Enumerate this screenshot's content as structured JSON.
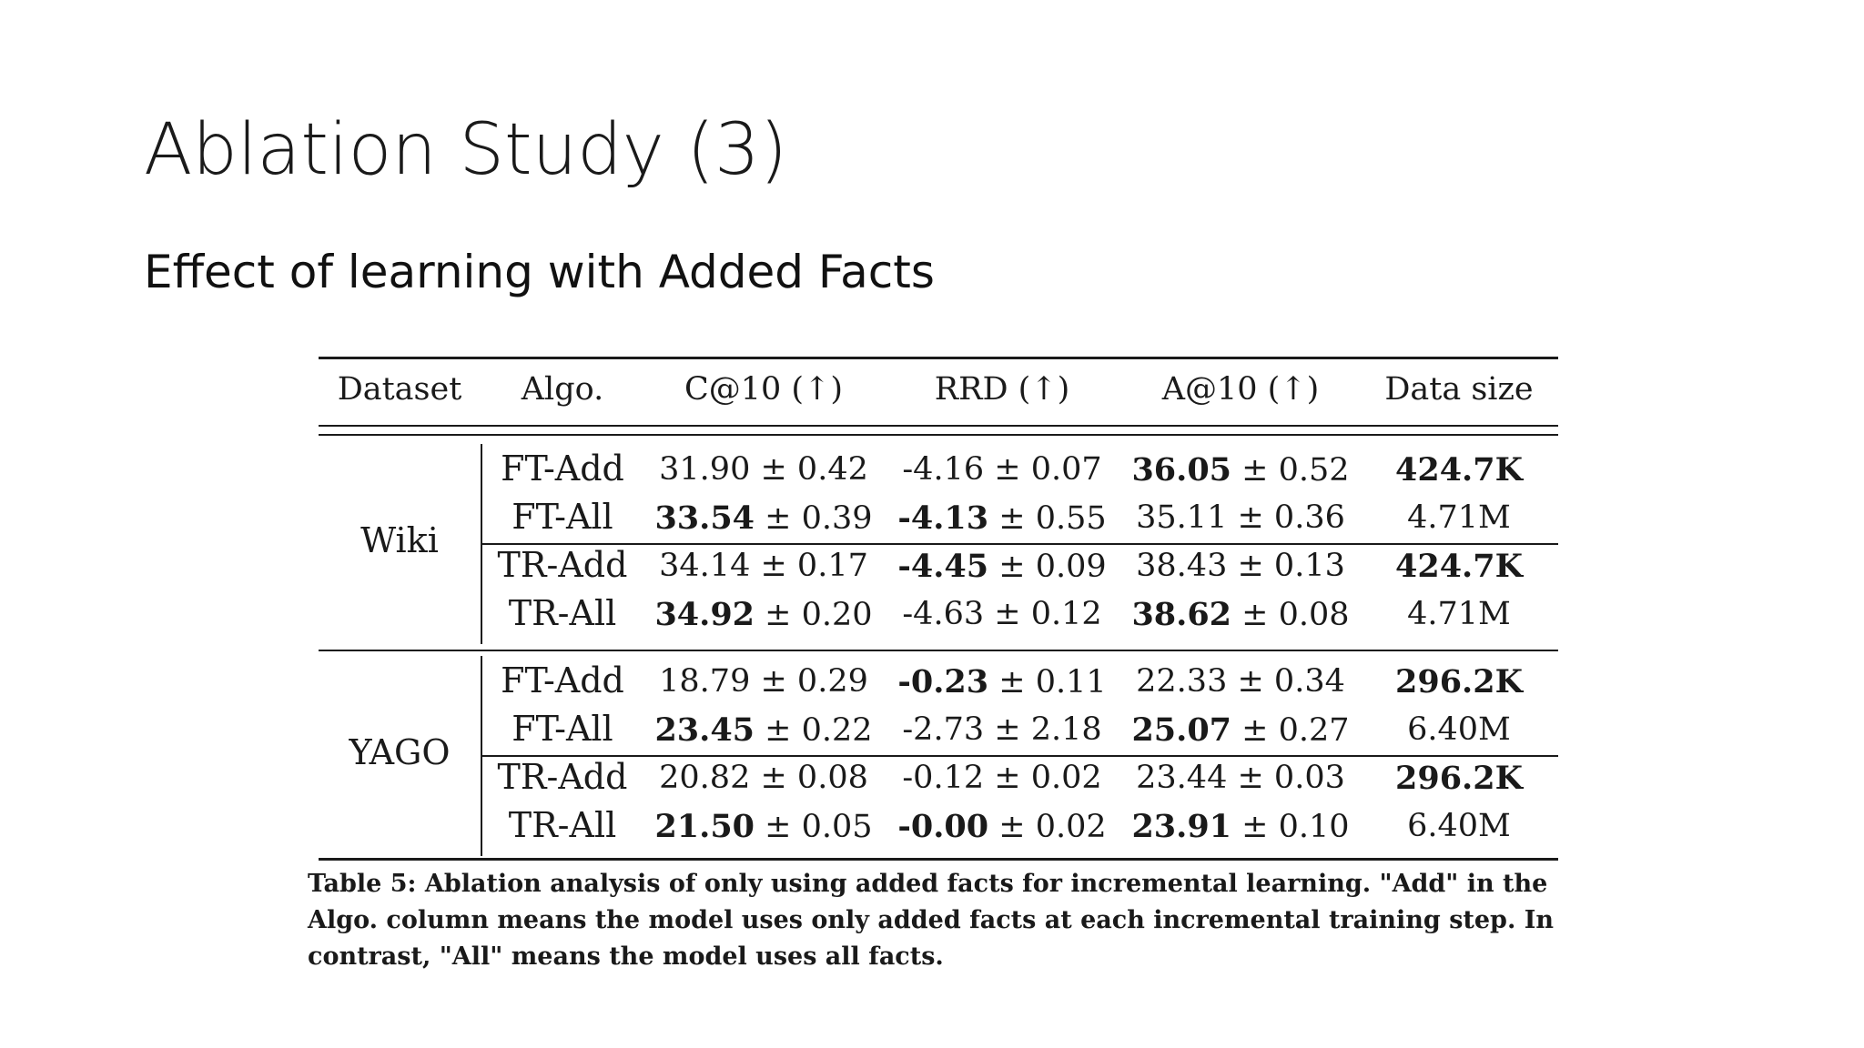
{
  "slide": {
    "title": "Ablation Study (3)",
    "subtitle": "Effect of learning with Added Facts"
  },
  "table": {
    "headers": [
      "Dataset",
      "Algo.",
      "C@10 (↑)",
      "RRD (↑)",
      "A@10 (↑)",
      "Data size"
    ],
    "groups": [
      {
        "dataset": "Wiki",
        "rows": [
          {
            "algo": "FT-Add",
            "c10": {
              "v": "31.90",
              "sd": "± 0.42",
              "bold": false
            },
            "rrd": {
              "v": "-4.16",
              "sd": "± 0.07",
              "bold": false
            },
            "a10": {
              "v": "36.05",
              "sd": "± 0.52",
              "bold": true
            },
            "size": {
              "v": "424.7K",
              "bold": true
            }
          },
          {
            "algo": "FT-All",
            "c10": {
              "v": "33.54",
              "sd": "± 0.39",
              "bold": true
            },
            "rrd": {
              "v": "-4.13",
              "sd": "± 0.55",
              "bold": true
            },
            "a10": {
              "v": "35.11",
              "sd": "± 0.36",
              "bold": false
            },
            "size": {
              "v": "4.71M",
              "bold": false
            }
          },
          {
            "algo": "TR-Add",
            "c10": {
              "v": "34.14",
              "sd": "± 0.17",
              "bold": false
            },
            "rrd": {
              "v": "-4.45",
              "sd": "± 0.09",
              "bold": true
            },
            "a10": {
              "v": "38.43",
              "sd": "± 0.13",
              "bold": false
            },
            "size": {
              "v": "424.7K",
              "bold": true
            }
          },
          {
            "algo": "TR-All",
            "c10": {
              "v": "34.92",
              "sd": "± 0.20",
              "bold": true
            },
            "rrd": {
              "v": "-4.63",
              "sd": "± 0.12",
              "bold": false
            },
            "a10": {
              "v": "38.62",
              "sd": "± 0.08",
              "bold": true
            },
            "size": {
              "v": "4.71M",
              "bold": false
            }
          }
        ]
      },
      {
        "dataset": "YAGO",
        "rows": [
          {
            "algo": "FT-Add",
            "c10": {
              "v": "18.79",
              "sd": "± 0.29",
              "bold": false
            },
            "rrd": {
              "v": "-0.23",
              "sd": "± 0.11",
              "bold": true
            },
            "a10": {
              "v": "22.33",
              "sd": "± 0.34",
              "bold": false
            },
            "size": {
              "v": "296.2K",
              "bold": true
            }
          },
          {
            "algo": "FT-All",
            "c10": {
              "v": "23.45",
              "sd": "± 0.22",
              "bold": true
            },
            "rrd": {
              "v": "-2.73",
              "sd": "± 2.18",
              "bold": false
            },
            "a10": {
              "v": "25.07",
              "sd": "± 0.27",
              "bold": true
            },
            "size": {
              "v": "6.40M",
              "bold": false
            }
          },
          {
            "algo": "TR-Add",
            "c10": {
              "v": "20.82",
              "sd": "± 0.08",
              "bold": false
            },
            "rrd": {
              "v": "-0.12",
              "sd": "± 0.02",
              "bold": false
            },
            "a10": {
              "v": "23.44",
              "sd": "± 0.03",
              "bold": false
            },
            "size": {
              "v": "296.2K",
              "bold": true
            }
          },
          {
            "algo": "TR-All",
            "c10": {
              "v": "21.50",
              "sd": "± 0.05",
              "bold": true
            },
            "rrd": {
              "v": "-0.00",
              "sd": "± 0.02",
              "bold": true
            },
            "a10": {
              "v": "23.91",
              "sd": "± 0.10",
              "bold": true
            },
            "size": {
              "v": "6.40M",
              "bold": false
            }
          }
        ]
      }
    ],
    "caption": "Table 5: Ablation analysis of only using added facts for incremental learning. \"Add\" in the Algo. column means the model uses only added facts at each incremental training step. In contrast, \"All\" means the model uses all facts."
  }
}
